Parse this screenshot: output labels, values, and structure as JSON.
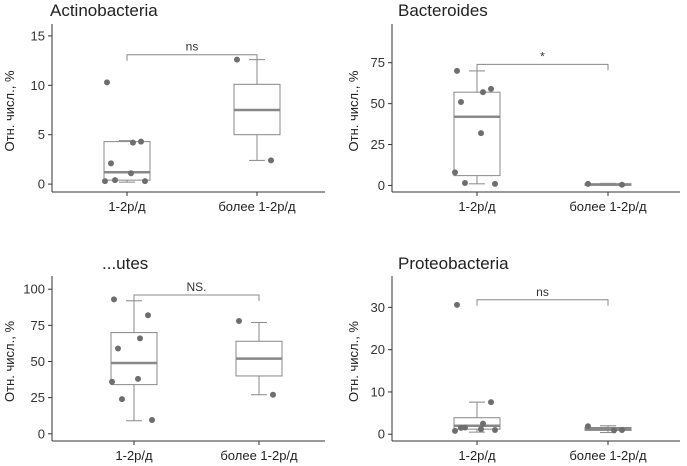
{
  "colors": {
    "box_stroke": "#888888",
    "point": "#6e6e6e",
    "axis": "#333333"
  },
  "chart_data": [
    {
      "type": "box",
      "title": "Actinobacteria",
      "ylabel": "Отн. числ., %",
      "categories": [
        "1-2р/д",
        "более 1-2р/д"
      ],
      "ylim": [
        -0.8,
        15.6
      ],
      "yticks": [
        0,
        5,
        10,
        15
      ],
      "boxes": [
        {
          "q1": 0.4,
          "median": 1.2,
          "q3": 4.3,
          "whisker_low": 0.2,
          "whisker_high": 4.4,
          "points": [
            10.3,
            4.3,
            4.2,
            2.1,
            1.1,
            0.3,
            0.4,
            0.3
          ]
        },
        {
          "q1": 5.0,
          "median": 7.5,
          "q3": 10.1,
          "whisker_low": 2.4,
          "whisker_high": 12.6,
          "points": [
            12.6,
            2.4
          ]
        }
      ],
      "significance": {
        "label": "ns",
        "y": 13.1
      }
    },
    {
      "type": "box",
      "title": "Bacteroides",
      "ylabel": "Отн. числ., %",
      "categories": [
        "1-2р/д",
        "более 1-2р/д"
      ],
      "ylim": [
        -4,
        95
      ],
      "yticks": [
        0,
        25,
        50,
        75
      ],
      "boxes": [
        {
          "q1": 6,
          "median": 42,
          "q3": 57,
          "whisker_low": 1,
          "whisker_high": 70,
          "points": [
            70,
            59,
            57,
            51,
            32,
            8,
            1.5,
            1
          ]
        },
        {
          "q1": 0.3,
          "median": 0.6,
          "q3": 1.0,
          "whisker_low": 0.1,
          "whisker_high": 1.3,
          "points": [
            1.0,
            0.4
          ]
        }
      ],
      "significance": {
        "label": "*",
        "y": 74
      }
    },
    {
      "type": "box",
      "title": "...utes",
      "ylabel": "Отн. числ., %",
      "categories": [
        "1-2р/д",
        "более 1-2р/д"
      ],
      "ylim": [
        -5,
        105
      ],
      "yticks": [
        0,
        25,
        50,
        75,
        100
      ],
      "boxes": [
        {
          "q1": 34,
          "median": 49,
          "q3": 70,
          "whisker_low": 9,
          "whisker_high": 92,
          "points": [
            93,
            82,
            66,
            59,
            38,
            36,
            24,
            9.5
          ]
        },
        {
          "q1": 40,
          "median": 52,
          "q3": 64,
          "whisker_low": 27,
          "whisker_high": 77,
          "points": [
            78,
            27
          ]
        }
      ],
      "significance": {
        "label": "NS.",
        "y": 96
      }
    },
    {
      "type": "box",
      "title": "Proteobacteria",
      "ylabel": "Отн. числ., %",
      "categories": [
        "1-2р/д",
        "более 1-2р/д"
      ],
      "ylim": [
        -1.6,
        36
      ],
      "yticks": [
        0,
        10,
        20,
        30
      ],
      "boxes": [
        {
          "q1": 1.2,
          "median": 2.0,
          "q3": 3.9,
          "whisker_low": 0.5,
          "whisker_high": 7.6,
          "points": [
            30.6,
            7.6,
            2.5,
            1.5,
            1.2,
            0.8,
            1.6,
            1.0
          ]
        },
        {
          "q1": 0.9,
          "median": 1.3,
          "q3": 1.6,
          "whisker_low": 0.4,
          "whisker_high": 2.0,
          "points": [
            1.9,
            1.0,
            0.9
          ]
        }
      ],
      "significance": {
        "label": "ns",
        "y": 31.8
      }
    }
  ]
}
